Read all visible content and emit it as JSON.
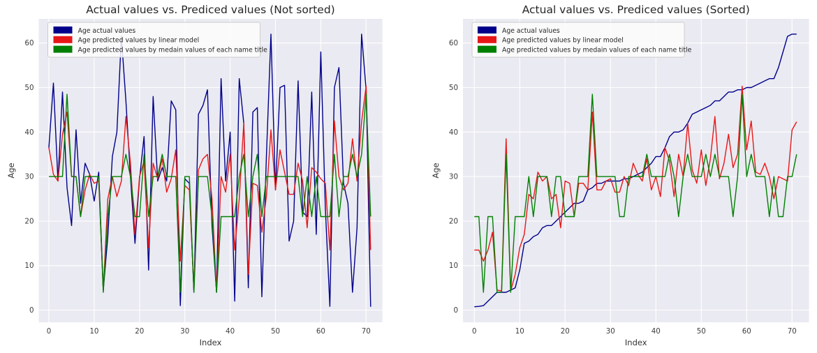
{
  "figure": {
    "background": "#ffffff",
    "panel_background": "#eaeaf2",
    "grid_color": "#ffffff",
    "colors": {
      "actual": "#00008b",
      "linear_model": "#e81717",
      "median_title": "#008000"
    }
  },
  "legend": {
    "entries": [
      {
        "label": "Age actual values",
        "color": "#00008b",
        "series": "actual"
      },
      {
        "label": "Age predicted values by linear model",
        "color": "#e81717",
        "series": "linear_model"
      },
      {
        "label": "Age predicted values by medain values of each name title",
        "color": "#008000",
        "series": "median_title"
      }
    ]
  },
  "charts": [
    {
      "title": "Actual values vs. Prediced values (Not sorted)",
      "xlabel": "Index",
      "ylabel": "Age",
      "xticks": [
        0,
        10,
        20,
        30,
        40,
        50,
        60,
        70
      ],
      "yticks": [
        0,
        10,
        20,
        30,
        40,
        50,
        60
      ],
      "sorted": false
    },
    {
      "title": "Actual values vs. Prediced values (Sorted)",
      "xlabel": "Index",
      "ylabel": "Age",
      "xticks": [
        0,
        10,
        20,
        30,
        40,
        50,
        60,
        70
      ],
      "yticks": [
        0,
        10,
        20,
        30,
        40,
        50,
        60
      ],
      "sorted": true
    }
  ],
  "chart_data": {
    "type": "line",
    "x_range": [
      0,
      71
    ],
    "xlim": [
      -2.2,
      73.5
    ],
    "ylim": [
      -2.7,
      65.4
    ],
    "grid": true,
    "legend_position": "upper left",
    "note_right_panel": "Same series re-ordered ascending by 'Age actual values'",
    "series": [
      {
        "name": "Age actual values",
        "key": "actual",
        "values": [
          36.5,
          51,
          29,
          49,
          27.5,
          19,
          40.5,
          24,
          33,
          30.5,
          24.5,
          31,
          4.5,
          16.5,
          34.5,
          40,
          61.5,
          47,
          30,
          15,
          29.5,
          39,
          9,
          48,
          29,
          32,
          29,
          47,
          45,
          1,
          29.5,
          28.5,
          4,
          44,
          46,
          49.5,
          19,
          4,
          52,
          29,
          40,
          2,
          52,
          42,
          5,
          44.5,
          45.5,
          3,
          34.5,
          62,
          27,
          50,
          50.5,
          15.5,
          20,
          51.5,
          22,
          21,
          49,
          17,
          58,
          23,
          0.83,
          50,
          54.5,
          28.5,
          24,
          4,
          18.5,
          62,
          49.5,
          0.75
        ]
      },
      {
        "name": "Age predicted values by linear model",
        "key": "linear_model",
        "values": [
          36.5,
          30.5,
          29,
          39.5,
          44.5,
          30,
          30,
          21,
          27,
          30.5,
          28.5,
          29,
          4.3,
          25,
          30,
          25.5,
          29,
          43.5,
          33,
          17,
          30,
          33.5,
          14,
          33,
          29.5,
          34,
          26.5,
          29.5,
          36,
          11,
          28,
          27,
          4.5,
          31.5,
          34,
          35,
          25,
          4.3,
          30,
          26.5,
          35,
          13.5,
          25,
          42,
          8,
          28.5,
          28,
          17.5,
          25.5,
          40.5,
          27,
          36,
          31,
          26,
          26,
          33,
          29,
          18.5,
          32,
          31,
          29.5,
          28.5,
          13.5,
          42.5,
          30,
          27,
          28.5,
          38.5,
          29,
          42.3,
          50.3,
          13.5
        ]
      },
      {
        "name": "Age predicted values by medain values of each name title",
        "key": "median_title",
        "values": [
          30,
          30,
          30,
          30,
          48.5,
          30,
          30,
          21,
          30,
          30,
          30,
          30,
          4,
          21,
          30,
          30,
          30,
          35,
          30,
          21,
          21,
          35,
          21,
          30,
          30,
          35,
          30,
          30,
          30,
          4,
          30,
          30,
          4,
          30,
          30,
          30,
          21,
          4,
          21,
          21,
          21,
          21,
          30,
          35,
          21,
          30,
          35,
          21,
          30,
          30,
          30,
          30,
          30,
          30,
          30,
          30,
          21,
          30,
          21,
          30,
          21,
          21,
          21,
          35,
          21,
          30,
          30,
          35,
          30,
          35,
          48.5,
          21
        ]
      }
    ]
  }
}
